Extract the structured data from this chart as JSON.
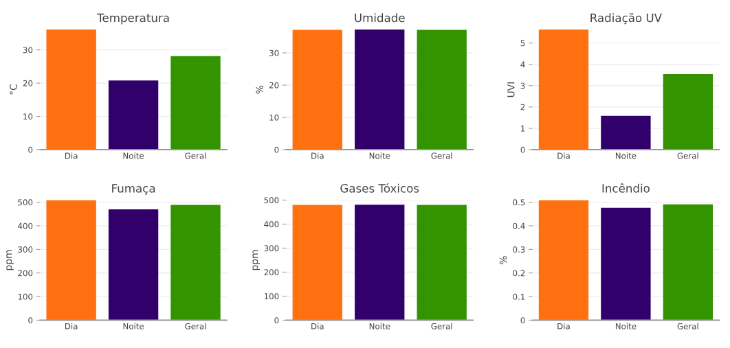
{
  "chart_data": [
    {
      "type": "bar",
      "title": "Temperatura",
      "ylabel": "°C",
      "categories": [
        "Dia",
        "Noite",
        "Geral"
      ],
      "values": [
        36.1,
        20.8,
        28.1
      ],
      "colors": [
        "#ff7010",
        "#32006b",
        "#349400"
      ],
      "ylim": [
        0,
        36.1
      ],
      "yticks": [
        0,
        10,
        20,
        30
      ],
      "grid": "y"
    },
    {
      "type": "bar",
      "title": "Umidade",
      "ylabel": "%",
      "categories": [
        "Dia",
        "Noite",
        "Geral"
      ],
      "values": [
        37.1,
        37.2,
        37.1
      ],
      "colors": [
        "#ff7010",
        "#32006b",
        "#349400"
      ],
      "ylim": [
        0,
        37.2
      ],
      "yticks": [
        0,
        10,
        20,
        30
      ],
      "grid": "y"
    },
    {
      "type": "bar",
      "title": "Radiação UV",
      "ylabel": "UVI",
      "categories": [
        "Dia",
        "Noite",
        "Geral"
      ],
      "values": [
        5.63,
        1.59,
        3.54
      ],
      "colors": [
        "#ff7010",
        "#32006b",
        "#349400"
      ],
      "ylim": [
        0,
        5.63
      ],
      "yticks": [
        0,
        1,
        2,
        3,
        4,
        5
      ],
      "grid": "y"
    },
    {
      "type": "bar",
      "title": "Fumaça",
      "ylabel": "ppm",
      "categories": [
        "Dia",
        "Noite",
        "Geral"
      ],
      "values": [
        509,
        470,
        489
      ],
      "colors": [
        "#ff7010",
        "#32006b",
        "#349400"
      ],
      "ylim": [
        0,
        509
      ],
      "yticks": [
        0,
        100,
        200,
        300,
        400,
        500
      ],
      "grid": "y"
    },
    {
      "type": "bar",
      "title": "Gases Tóxicos",
      "ylabel": "ppm",
      "categories": [
        "Dia",
        "Noite",
        "Geral"
      ],
      "values": [
        480,
        481,
        480
      ],
      "colors": [
        "#ff7010",
        "#32006b",
        "#349400"
      ],
      "ylim": [
        0,
        500
      ],
      "yticks": [
        0,
        100,
        200,
        300,
        400,
        500
      ],
      "grid": "y"
    },
    {
      "type": "bar",
      "title": "Incêndio",
      "ylabel": "%",
      "categories": [
        "Dia",
        "Noite",
        "Geral"
      ],
      "values": [
        0.509,
        0.476,
        0.491
      ],
      "colors": [
        "#ff7010",
        "#32006b",
        "#349400"
      ],
      "ylim": [
        0,
        0.509
      ],
      "yticks": [
        0,
        0.1,
        0.2,
        0.3,
        0.4,
        0.5
      ],
      "grid": "y"
    }
  ]
}
